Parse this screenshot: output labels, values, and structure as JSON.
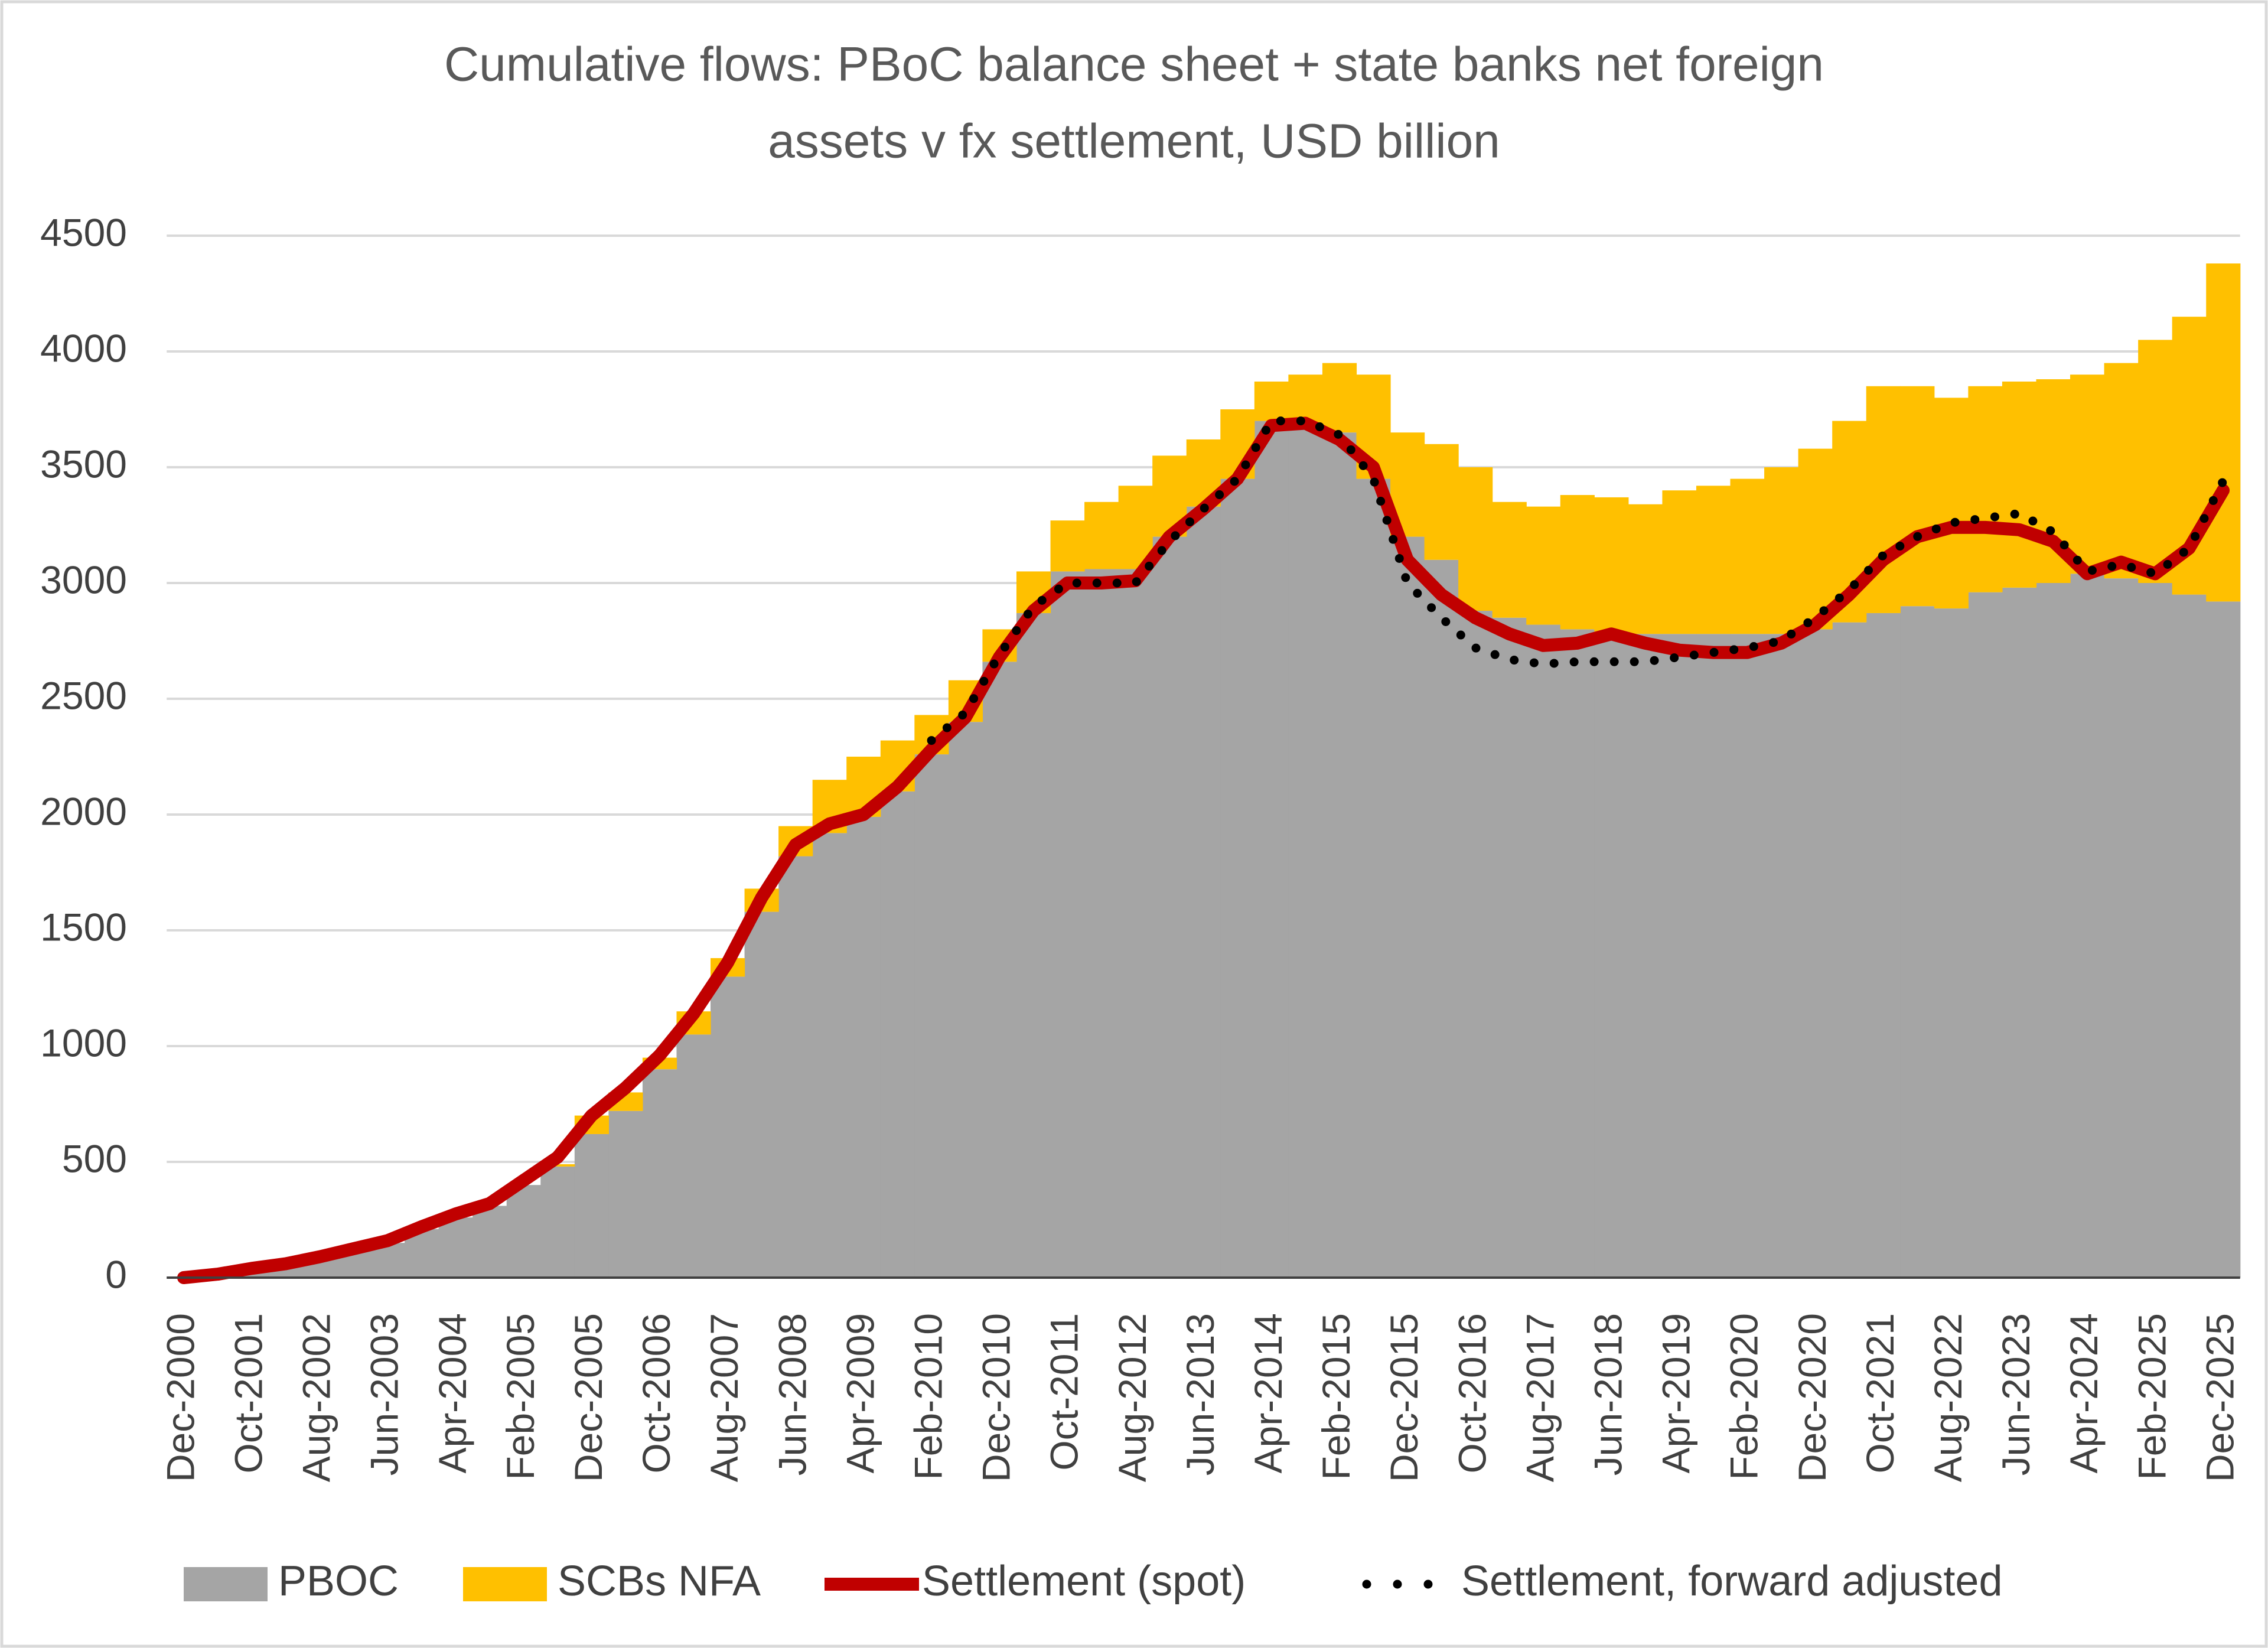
{
  "chart_data": {
    "type": "combo",
    "title": [
      "Cumulative flows: PBoC balance sheet + state banks net foreign",
      "assets v fx settlement, USD billion"
    ],
    "categories": [
      "Dec-2000",
      null,
      "Oct-2001",
      null,
      "Aug-2002",
      null,
      "Jun-2003",
      null,
      "Apr-2004",
      null,
      "Feb-2005",
      null,
      "Dec-2005",
      null,
      "Oct-2006",
      null,
      "Aug-2007",
      null,
      "Jun-2008",
      null,
      "Apr-2009",
      null,
      "Feb-2010",
      null,
      "Dec-2010",
      null,
      "Oct-2011",
      null,
      "Aug-2012",
      null,
      "Jun-2013",
      null,
      "Apr-2014",
      null,
      "Feb-2015",
      null,
      "Dec-2015",
      null,
      "Oct-2016",
      null,
      "Aug-2017",
      null,
      "Jun-2018",
      null,
      "Apr-2019",
      null,
      "Feb-2020",
      null,
      "Dec-2020",
      null,
      "Oct-2021",
      null,
      "Aug-2022",
      null,
      "Jun-2023",
      null,
      "Apr-2024",
      null,
      "Feb-2025",
      null,
      "Dec-2025"
    ],
    "series": [
      {
        "name": "PBOC",
        "type": "stacked-bar",
        "color": "#a5a5a5",
        "values": [
          0,
          15,
          35,
          60,
          85,
          120,
          150,
          210,
          260,
          310,
          400,
          480,
          620,
          720,
          900,
          1050,
          1300,
          1580,
          1820,
          1920,
          1990,
          2100,
          2260,
          2400,
          2660,
          2870,
          3050,
          3060,
          3060,
          3200,
          3330,
          3450,
          3700,
          3680,
          3650,
          3450,
          3200,
          3100,
          2880,
          2850,
          2820,
          2800,
          2790,
          2780,
          2780,
          2780,
          2780,
          2780,
          2800,
          2830,
          2870,
          2900,
          2890,
          2960,
          2980,
          3000,
          3040,
          3020,
          3000,
          2950,
          2920
        ]
      },
      {
        "name": "SCBs NFA",
        "type": "stacked-bar",
        "color": "#ffc000",
        "values": [
          0,
          0,
          0,
          0,
          0,
          0,
          0,
          0,
          0,
          0,
          0,
          10,
          80,
          80,
          50,
          100,
          80,
          100,
          130,
          230,
          260,
          220,
          170,
          180,
          140,
          180,
          220,
          290,
          360,
          350,
          290,
          300,
          170,
          220,
          300,
          450,
          450,
          500,
          620,
          500,
          510,
          580,
          580,
          560,
          620,
          640,
          670,
          720,
          780,
          870,
          980,
          950,
          910,
          890,
          890,
          880,
          860,
          930,
          1050,
          1200,
          1460
        ]
      },
      {
        "name": "Settlement (spot)",
        "type": "line",
        "color": "#c00000",
        "values": [
          0,
          15,
          40,
          60,
          90,
          125,
          160,
          220,
          275,
          320,
          420,
          520,
          700,
          820,
          960,
          1140,
          1360,
          1640,
          1870,
          1960,
          2000,
          2120,
          2280,
          2420,
          2680,
          2880,
          3000,
          3000,
          3010,
          3200,
          3320,
          3450,
          3680,
          3690,
          3620,
          3500,
          3100,
          2950,
          2850,
          2780,
          2730,
          2740,
          2780,
          2740,
          2710,
          2700,
          2700,
          2740,
          2820,
          2950,
          3100,
          3200,
          3240,
          3240,
          3230,
          3180,
          3040,
          3090,
          3040,
          3150,
          3400
        ]
      },
      {
        "name": "Settlement, forward adjusted",
        "type": "dotted-line",
        "color": "#000000",
        "values": [
          null,
          null,
          null,
          null,
          null,
          null,
          null,
          null,
          null,
          null,
          null,
          null,
          null,
          null,
          null,
          null,
          null,
          null,
          null,
          null,
          null,
          null,
          2320,
          2440,
          2690,
          2900,
          3000,
          3000,
          3000,
          3180,
          3320,
          3450,
          3700,
          3700,
          3640,
          3450,
          3000,
          2850,
          2720,
          2670,
          2650,
          2660,
          2660,
          2660,
          2680,
          2700,
          2720,
          2750,
          2850,
          2970,
          3120,
          3200,
          3260,
          3280,
          3300,
          3220,
          3050,
          3080,
          3040,
          3150,
          3440
        ]
      }
    ],
    "ylim": [
      0,
      4500
    ],
    "yticks": [
      0,
      500,
      1000,
      1500,
      2000,
      2500,
      3000,
      3500,
      4000,
      4500
    ],
    "grid": true,
    "legend": "bottom"
  }
}
